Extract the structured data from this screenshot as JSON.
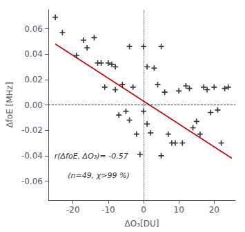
{
  "chart_data": {
    "type": "scatter",
    "xlabel": "ΔO₃[DU]",
    "ylabel": "ΔfoE [MHz]",
    "annotations": [
      "r(ΔfoE, ΔO₃)= -0.57",
      "(n=49, χ>99 %)"
    ],
    "xlim": [
      -27,
      26
    ],
    "ylim": [
      -0.075,
      0.075
    ],
    "xticks": [
      -20,
      -10,
      0,
      10,
      20
    ],
    "yticks": [
      -0.06,
      -0.04,
      -0.02,
      {
        "value": 0.0,
        "label": "0.00"
      },
      0.02,
      0.04,
      0.06
    ],
    "grid": false,
    "series": [
      {
        "type": "scatter",
        "marker": "plus",
        "color": "black",
        "x": [
          -23,
          -19,
          -17,
          -13,
          -12,
          -11,
          -10,
          -9,
          -8,
          -7,
          -6,
          -5,
          -4,
          -3,
          -2,
          -1,
          0,
          1,
          2,
          3,
          4,
          5,
          6,
          7,
          8,
          9,
          10,
          11,
          12,
          13,
          14,
          15,
          16,
          17,
          18,
          19,
          20,
          21,
          22,
          23,
          24,
          -25,
          -14,
          -16,
          -8,
          -4,
          1,
          5,
          0
        ],
        "values": [
          0.057,
          0.039,
          0.051,
          0.033,
          0.033,
          0.014,
          0.033,
          0.032,
          0.012,
          -0.008,
          0.016,
          -0.005,
          -0.012,
          0.014,
          -0.023,
          -0.039,
          -0.005,
          -0.015,
          -0.022,
          0.029,
          0.016,
          -0.04,
          0.01,
          -0.023,
          -0.03,
          -0.03,
          0.011,
          -0.03,
          0.015,
          0.013,
          -0.018,
          -0.013,
          -0.023,
          0.014,
          0.012,
          -0.006,
          0.014,
          -0.004,
          -0.03,
          0.013,
          0.014,
          0.069,
          0.053,
          0.045,
          0.03,
          0.046,
          0.03,
          0.046,
          0.046
        ]
      },
      {
        "type": "line",
        "color": "#cc0000",
        "x": [
          -25,
          25
        ],
        "values": [
          0.048,
          -0.042
        ]
      },
      {
        "type": "hline",
        "color": "black",
        "line_style": "dashed",
        "values": [
          0
        ]
      },
      {
        "type": "vline",
        "color": "black",
        "line_style": "dotted",
        "x": [
          0
        ]
      }
    ]
  }
}
